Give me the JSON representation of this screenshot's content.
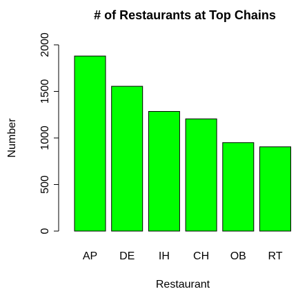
{
  "chart_data": {
    "type": "bar",
    "title": "# of Restaurants at Top Chains",
    "x_label": "Restaurant",
    "y_label": "Number",
    "categories": [
      "AP",
      "DE",
      "IH",
      "CH",
      "OB",
      "RT"
    ],
    "values": [
      1880,
      1555,
      1285,
      1205,
      950,
      905
    ],
    "color": "#00ff00",
    "ylim": [
      0,
      2000
    ],
    "yticks": [
      0,
      500,
      1000,
      1500,
      2000
    ],
    "grid": false
  }
}
